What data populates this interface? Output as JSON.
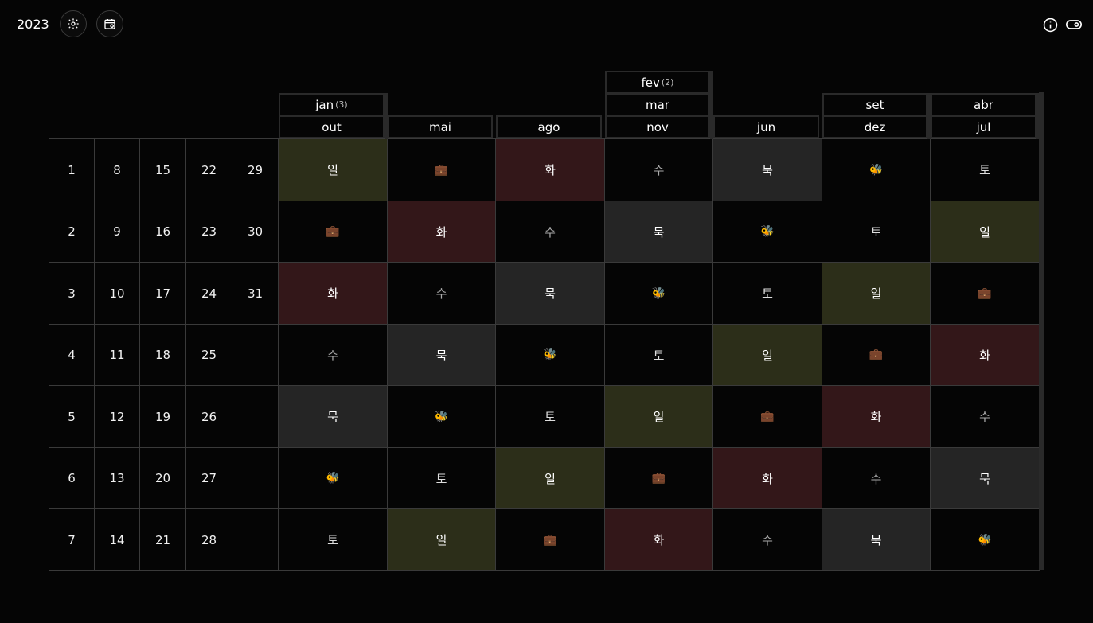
{
  "header": {
    "year": "2023"
  },
  "icons": {
    "settings": "gear-icon",
    "calendar": "calendar-icon",
    "info": "info-icon",
    "toggle": "toggle-icon"
  },
  "colors": {
    "일": "#2c2e19",
    "화": "#331719",
    "묵": "#252525",
    "background": "#050505"
  },
  "days": [
    [
      "1",
      "8",
      "15",
      "22",
      "29"
    ],
    [
      "2",
      "9",
      "16",
      "23",
      "30"
    ],
    [
      "3",
      "10",
      "17",
      "24",
      "31"
    ],
    [
      "4",
      "11",
      "18",
      "25",
      ""
    ],
    [
      "5",
      "12",
      "19",
      "26",
      ""
    ],
    [
      "6",
      "13",
      "20",
      "27",
      ""
    ],
    [
      "7",
      "14",
      "21",
      "28",
      ""
    ]
  ],
  "month_columns": [
    {
      "months": [
        {
          "label": "jan",
          "count": "(3)"
        },
        {
          "label": "out",
          "count": ""
        }
      ]
    },
    {
      "months": [
        {
          "label": "mai",
          "count": ""
        }
      ]
    },
    {
      "months": [
        {
          "label": "ago",
          "count": ""
        }
      ]
    },
    {
      "months": [
        {
          "label": "fev",
          "count": "(2)"
        },
        {
          "label": "mar",
          "count": ""
        },
        {
          "label": "nov",
          "count": ""
        }
      ]
    },
    {
      "months": [
        {
          "label": "jun",
          "count": ""
        }
      ]
    },
    {
      "months": [
        {
          "label": "set",
          "count": ""
        },
        {
          "label": "dez",
          "count": ""
        }
      ]
    },
    {
      "months": [
        {
          "label": "abr",
          "count": ""
        },
        {
          "label": "jul",
          "count": ""
        }
      ]
    }
  ],
  "weekday_grid": [
    [
      "일",
      "work",
      "화",
      "수",
      "묵",
      "bee",
      "토"
    ],
    [
      "work",
      "화",
      "수",
      "묵",
      "bee",
      "토",
      "일"
    ],
    [
      "화",
      "수",
      "묵",
      "bee",
      "토",
      "일",
      "work"
    ],
    [
      "수",
      "묵",
      "bee",
      "토",
      "일",
      "work",
      "화"
    ],
    [
      "묵",
      "bee",
      "토",
      "일",
      "work",
      "화",
      "수"
    ],
    [
      "bee",
      "토",
      "일",
      "work",
      "화",
      "수",
      "묵"
    ],
    [
      "토",
      "일",
      "work",
      "화",
      "수",
      "묵",
      "bee"
    ]
  ],
  "glyphs": {
    "work": "💼",
    "bee": "🐝"
  }
}
